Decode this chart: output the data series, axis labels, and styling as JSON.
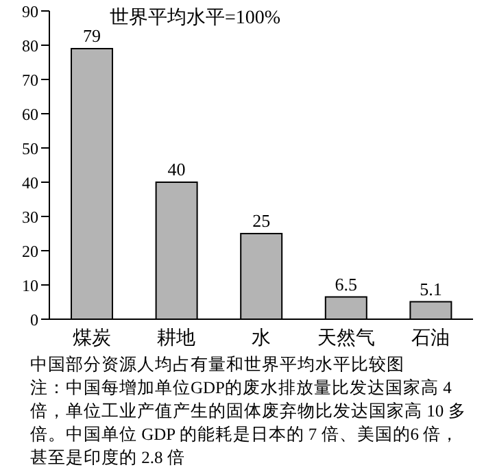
{
  "chart_data": {
    "type": "bar",
    "title": "世界平均水平=100%",
    "categories": [
      "煤炭",
      "耕地",
      "水",
      "天然气",
      "石油"
    ],
    "values": [
      79,
      40,
      25,
      6.5,
      5.1
    ],
    "color": "#b4b4b4",
    "ylim": [
      0,
      90
    ],
    "yticks": [
      0,
      10,
      20,
      30,
      40,
      50,
      60,
      70,
      80,
      90
    ],
    "grid": false,
    "data_labels": true,
    "annotations": [
      "中国部分资源人均占有量和世界平均水平比较图",
      "注：中国每增加单位GDP的废水排放量比发达国家高 4 倍，单位工业产值产生的固体废弃物比发达国家高 10 多倍。中国单位 GDP 的能耗是日本的 7 倍、美国的6 倍，甚至是印度的 2.8 倍"
    ]
  }
}
